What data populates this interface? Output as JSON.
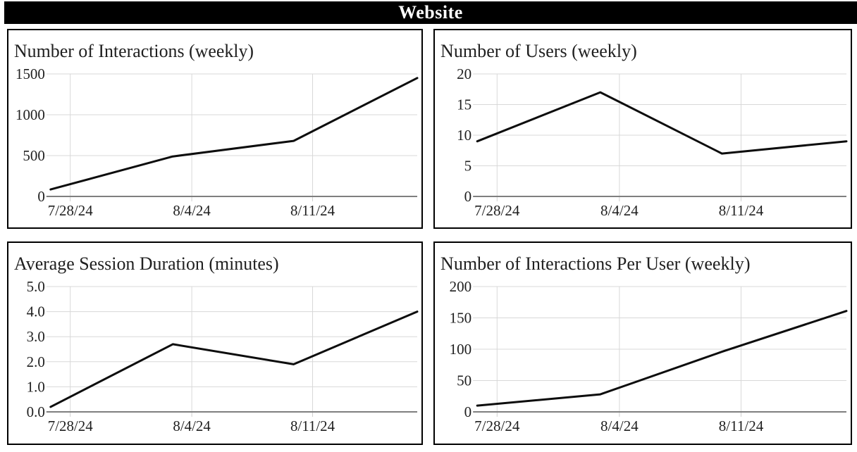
{
  "page": {
    "header_title": "Website"
  },
  "colors": {
    "header_bg": "#000000",
    "header_text": "#ffffff",
    "card_border": "#000000",
    "line": "#0d0d0d",
    "gridline": "#d8d8d8",
    "axis_baseline": "#7f7f7f",
    "text": "#1f1f1f",
    "background": "#ffffff"
  },
  "chart_data": [
    {
      "type": "line",
      "title": "Number of Interactions (weekly)",
      "x_tick_labels": [
        "7/28/24",
        "8/4/24",
        "8/11/24"
      ],
      "y_tick_labels": [
        "1500",
        "1000",
        "500",
        "0"
      ],
      "values": [
        85,
        490,
        680,
        1450
      ],
      "ylim": [
        0,
        1500
      ],
      "xlabel": "",
      "ylabel": "",
      "grid": true,
      "legend": "none"
    },
    {
      "type": "line",
      "title": "Number of Users (weekly)",
      "x_tick_labels": [
        "7/28/24",
        "8/4/24",
        "8/11/24"
      ],
      "y_tick_labels": [
        "20",
        "15",
        "10",
        "5",
        "0"
      ],
      "values": [
        9,
        17,
        7,
        9
      ],
      "ylim": [
        0,
        20
      ],
      "xlabel": "",
      "ylabel": "",
      "grid": true,
      "legend": "none"
    },
    {
      "type": "line",
      "title": "Average Session Duration (minutes)",
      "x_tick_labels": [
        "7/28/24",
        "8/4/24",
        "8/11/24"
      ],
      "y_tick_labels": [
        "5.0",
        "4.0",
        "3.0",
        "2.0",
        "1.0",
        "0.0"
      ],
      "values": [
        0.2,
        2.7,
        1.9,
        4.0
      ],
      "ylim": [
        0,
        5
      ],
      "xlabel": "",
      "ylabel": "",
      "grid": true,
      "legend": "none"
    },
    {
      "type": "line",
      "title": "Number of Interactions Per User (weekly)",
      "x_tick_labels": [
        "7/28/24",
        "8/4/24",
        "8/11/24"
      ],
      "y_tick_labels": [
        "200",
        "150",
        "100",
        "50",
        "0"
      ],
      "values": [
        10,
        28,
        96,
        161
      ],
      "ylim": [
        0,
        200
      ],
      "xlabel": "",
      "ylabel": "",
      "grid": true,
      "legend": "none"
    }
  ]
}
